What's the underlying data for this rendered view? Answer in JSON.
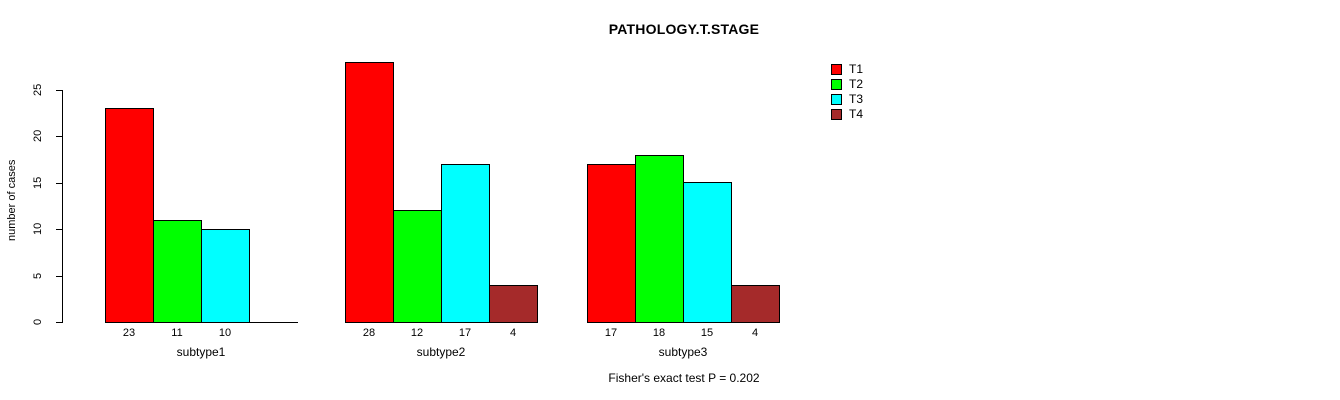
{
  "title": "PATHOLOGY.T.STAGE",
  "footer": "Fisher's exact test P = 0.202",
  "colors": {
    "background": "#FFFFFF",
    "axis": "#000000",
    "t1": "#FF0000",
    "t2": "#00FF00",
    "t3": "#00FFFF",
    "t4": "#A52A2A"
  },
  "chart_data": {
    "type": "bar",
    "title": "PATHOLOGY.T.STAGE",
    "xlabel": "",
    "ylabel": "number of cases",
    "categories": [
      "subtype1",
      "subtype2",
      "subtype3"
    ],
    "series": [
      {
        "name": "T1",
        "color": "#FF0000",
        "values": [
          23,
          28,
          17
        ]
      },
      {
        "name": "T2",
        "color": "#00FF00",
        "values": [
          11,
          12,
          18
        ]
      },
      {
        "name": "T3",
        "color": "#00FFFF",
        "values": [
          10,
          17,
          15
        ]
      },
      {
        "name": "T4",
        "color": "#A52A2A",
        "values": [
          0,
          4,
          4
        ]
      }
    ],
    "bar_labels": [
      [
        "23",
        "11",
        "10",
        ""
      ],
      [
        "28",
        "12",
        "17",
        "4"
      ],
      [
        "17",
        "18",
        "15",
        "4"
      ]
    ],
    "yticks": [
      0,
      5,
      10,
      15,
      20,
      25
    ],
    "ylim": [
      0,
      28
    ],
    "grid": false,
    "legend_position": "top-right",
    "legend_entries": [
      "T1",
      "T2",
      "T3",
      "T4"
    ],
    "annotation": "Fisher's exact test P = 0.202"
  }
}
